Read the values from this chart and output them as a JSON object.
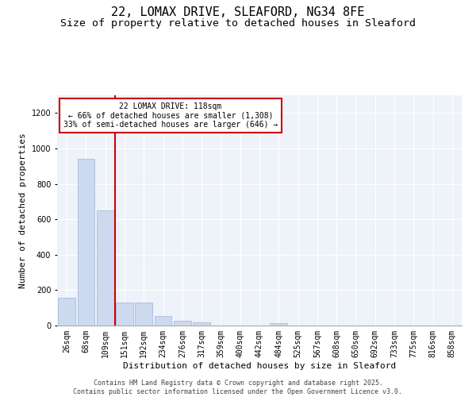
{
  "title1": "22, LOMAX DRIVE, SLEAFORD, NG34 8FE",
  "title2": "Size of property relative to detached houses in Sleaford",
  "xlabel": "Distribution of detached houses by size in Sleaford",
  "ylabel": "Number of detached properties",
  "footer1": "Contains HM Land Registry data © Crown copyright and database right 2025.",
  "footer2": "Contains public sector information licensed under the Open Government Licence v3.0.",
  "categories": [
    "26sqm",
    "68sqm",
    "109sqm",
    "151sqm",
    "192sqm",
    "234sqm",
    "276sqm",
    "317sqm",
    "359sqm",
    "400sqm",
    "442sqm",
    "484sqm",
    "525sqm",
    "567sqm",
    "608sqm",
    "650sqm",
    "692sqm",
    "733sqm",
    "775sqm",
    "816sqm",
    "858sqm"
  ],
  "values": [
    155,
    940,
    650,
    130,
    130,
    55,
    25,
    18,
    0,
    0,
    0,
    15,
    0,
    0,
    0,
    0,
    0,
    0,
    0,
    0,
    0
  ],
  "bar_color": "#ccd9ee",
  "bar_edge_color": "#9db5d8",
  "red_line_x": 2.5,
  "annotation_text": "22 LOMAX DRIVE: 118sqm\n← 66% of detached houses are smaller (1,308)\n33% of semi-detached houses are larger (646) →",
  "annotation_box_color": "#ffffff",
  "annotation_box_edge": "#cc0000",
  "red_line_color": "#cc0000",
  "ylim": [
    0,
    1300
  ],
  "yticks": [
    0,
    200,
    400,
    600,
    800,
    1000,
    1200
  ],
  "bg_color": "#eef2f9",
  "title_fontsize": 11,
  "subtitle_fontsize": 9.5,
  "axis_label_fontsize": 8,
  "tick_fontsize": 7,
  "footer_fontsize": 6
}
